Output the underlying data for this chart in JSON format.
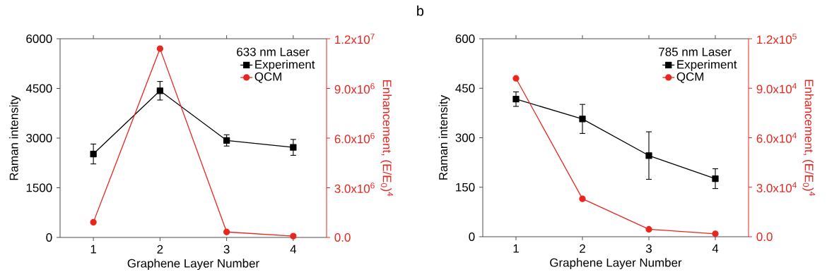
{
  "chart_data": [
    {
      "type": "line",
      "x": [
        1,
        2,
        3,
        4
      ],
      "xlim": [
        0.5,
        4.5
      ],
      "xticks": [
        1,
        2,
        3,
        4
      ],
      "ylim": [
        0,
        6000
      ],
      "yticks": [
        0,
        1500,
        3000,
        4500,
        6000
      ],
      "y2lim": [
        0,
        12000000
      ],
      "y2ticks": [
        {
          "value": 0,
          "label": "0.0"
        },
        {
          "value": 3000000,
          "label": "3.0x10$^{6}$"
        },
        {
          "value": 6000000,
          "label": "6.0x10$^{6}$"
        },
        {
          "value": 9000000,
          "label": "9.0x10$^{6}$"
        },
        {
          "value": 12000000,
          "label": "1.2x10$^{7}$"
        }
      ],
      "xlabel": "Graphene Layer Number",
      "ylabel": "Raman intensity",
      "y2label": "Enhancement, (E/E$_{0}$)$^{4}$",
      "legend_title": "633 nm Laser",
      "legend": "top right",
      "series": [
        {
          "name": "Experiment",
          "color": "#000000",
          "marker": "square",
          "values": [
            2520,
            4430,
            2930,
            2720
          ],
          "errors": [
            300,
            280,
            170,
            240
          ]
        },
        {
          "name": "QCM",
          "color": "#e8251f",
          "marker": "circle",
          "axis": "y2",
          "values": [
            920000,
            11400000,
            330000,
            80000
          ]
        }
      ]
    },
    {
      "type": "line",
      "x": [
        1,
        2,
        3,
        4
      ],
      "xlim": [
        0.5,
        4.5
      ],
      "xticks": [
        1,
        2,
        3,
        4
      ],
      "ylim": [
        0,
        600
      ],
      "yticks": [
        0,
        150,
        300,
        450,
        600
      ],
      "y2lim": [
        0,
        120000
      ],
      "y2ticks": [
        {
          "value": 0,
          "label": "0.0"
        },
        {
          "value": 30000,
          "label": "3.0x10$^{4}$"
        },
        {
          "value": 60000,
          "label": "6.0x10$^{4}$"
        },
        {
          "value": 90000,
          "label": "9.0x10$^{4}$"
        },
        {
          "value": 120000,
          "label": "1.2x10$^{5}$"
        }
      ],
      "xlabel": "Graphene Layer Number",
      "ylabel": "Raman intensity",
      "y2label": "Enhancement, (E/E$_{0}$)$^{4}$",
      "legend_title": "785 nm Laser",
      "legend": "top right",
      "annotations": [
        "b"
      ],
      "series": [
        {
          "name": "Experiment",
          "color": "#000000",
          "marker": "square",
          "values": [
            417,
            357,
            246,
            176
          ],
          "errors": [
            22,
            44,
            72,
            30
          ]
        },
        {
          "name": "QCM",
          "color": "#e8251f",
          "marker": "circle",
          "axis": "y2",
          "values": [
            96000,
            23000,
            4500,
            1800
          ]
        }
      ]
    }
  ]
}
